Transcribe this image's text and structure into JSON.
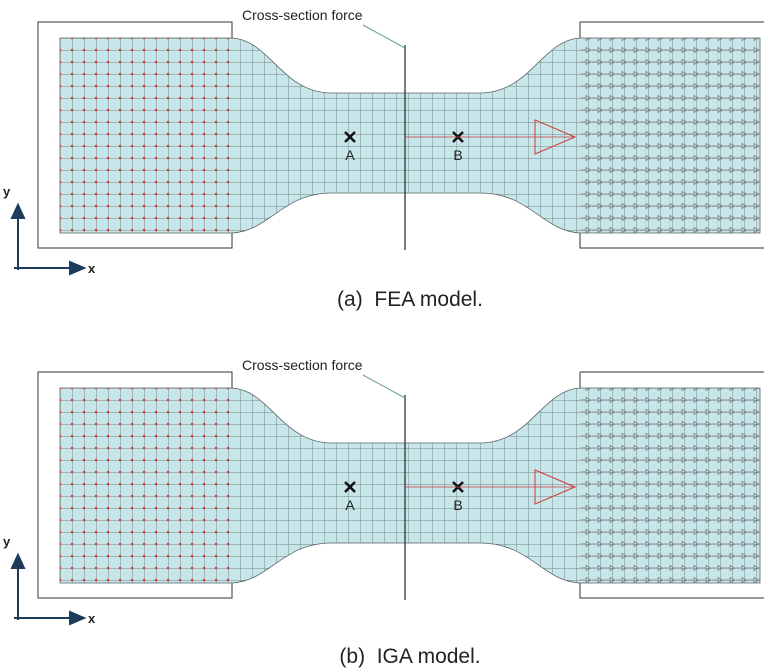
{
  "panels": [
    {
      "force_label": "Cross-section force",
      "point_a": "A",
      "point_b": "B",
      "axis_y": "y",
      "axis_x": "x",
      "caption": "(a)  FEA model."
    },
    {
      "force_label": "Cross-section force",
      "point_a": "A",
      "point_b": "B",
      "axis_y": "y",
      "axis_x": "x",
      "caption": "(b)  IGA model."
    }
  ]
}
